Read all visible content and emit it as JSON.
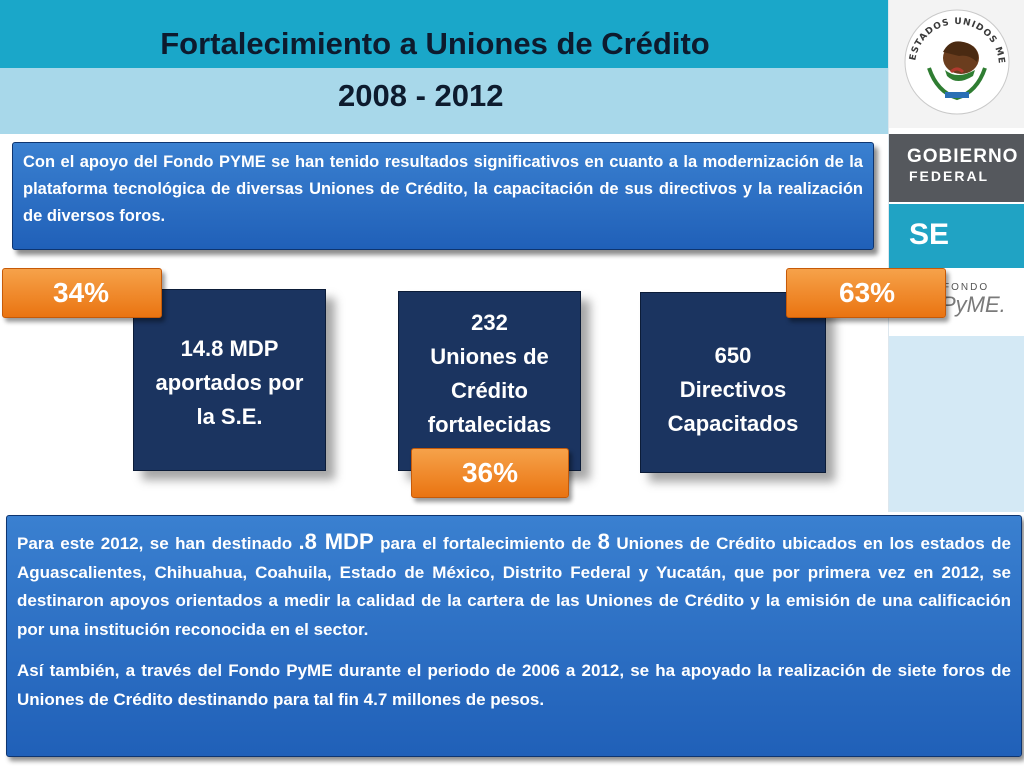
{
  "title": {
    "line1": "Fortalecimiento a Uniones de Crédito",
    "line2": "2008 - 2012"
  },
  "sidebar": {
    "gobierno_line1": "GOBIERNO",
    "gobierno_line2": "FEDERAL",
    "se_label": "SE",
    "seal_text": "ESTADOS UNIDOS MEXICANOS",
    "fondo_small": "FONDO",
    "fondo_logo": "PyME."
  },
  "intro_text": "Con el apoyo del Fondo PYME se han tenido resultados significativos en cuanto a la modernización de la plataforma tecnológica de diversas Uniones de Crédito, la capacitación de sus directivos y la realización de diversos foros.",
  "cards": [
    {
      "lines": [
        "14.8 MDP",
        "aportados por",
        "la S.E."
      ]
    },
    {
      "lines": [
        "232",
        "Uniones de",
        "Crédito",
        "fortalecidas"
      ]
    },
    {
      "lines": [
        "650",
        "Directivos",
        "Capacitados"
      ]
    }
  ],
  "badges": [
    "34%",
    "36%",
    "63%"
  ],
  "summary": {
    "p1_a": "Para este 2012, se han destinado ",
    "p1_amount": ".8 MDP",
    "p1_b": " para el fortalecimiento de ",
    "p1_count": "8",
    "p1_c": " Uniones de Crédito ubicados en los estados de Aguascalientes, Chihuahua, Coahuila, Estado de México, Distrito Federal y Yucatán, que por primera vez en 2012, se destinaron apoyos orientados a medir la calidad de la cartera de las Uniones de Crédito y la emisión de una calificación por una institución reconocida en el sector.",
    "p2": "Así también, a través del Fondo PyME durante el periodo de 2006 a 2012, se ha apoyado la realización de siete foros de Uniones de Crédito destinando para tal fin 4.7 millones de pesos."
  },
  "colors": {
    "title_band": "#1aa7c9",
    "title_band_light": "#a8d8ea",
    "box_blue": "#2a6fc4",
    "card_navy": "#1b3460",
    "badge_orange": "#ef8526",
    "gobierno_gray": "#55585d",
    "se_teal": "#20a3c4"
  }
}
